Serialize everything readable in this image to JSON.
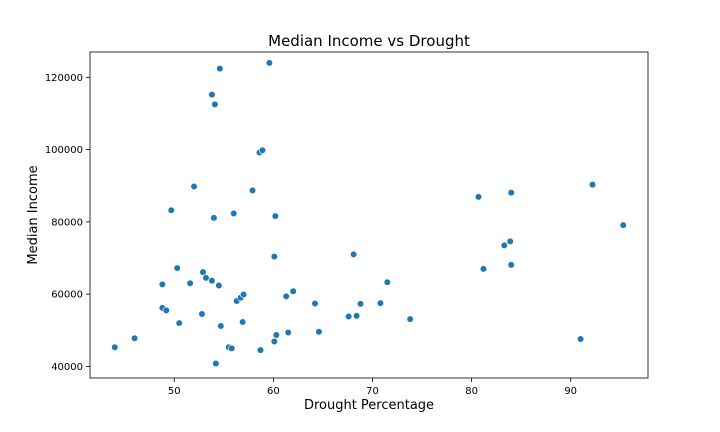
{
  "chart_data": {
    "type": "scatter",
    "title": "Median Income vs Drought",
    "xlabel": "Drought Percentage",
    "ylabel": "Median Income",
    "xlim": [
      41.5,
      97.8
    ],
    "ylim": [
      36800,
      127000
    ],
    "xticks": [
      50,
      60,
      70,
      80,
      90
    ],
    "yticks": [
      40000,
      60000,
      80000,
      100000,
      120000
    ],
    "grid": false,
    "legend": "none",
    "marker_color": "#1f77b4",
    "points": [
      [
        44.0,
        45300
      ],
      [
        46.0,
        47800
      ],
      [
        48.8,
        62700
      ],
      [
        48.8,
        56200
      ],
      [
        49.2,
        55500
      ],
      [
        49.7,
        83200
      ],
      [
        50.3,
        67200
      ],
      [
        50.5,
        52000
      ],
      [
        51.6,
        63000
      ],
      [
        52.0,
        89800
      ],
      [
        52.8,
        54500
      ],
      [
        52.9,
        66100
      ],
      [
        53.2,
        64500
      ],
      [
        53.8,
        63700
      ],
      [
        53.8,
        115200
      ],
      [
        54.0,
        81100
      ],
      [
        54.1,
        112500
      ],
      [
        54.2,
        40800
      ],
      [
        54.5,
        62400
      ],
      [
        54.6,
        122400
      ],
      [
        54.7,
        51200
      ],
      [
        55.5,
        45300
      ],
      [
        55.8,
        45000
      ],
      [
        56.0,
        82300
      ],
      [
        56.3,
        58100
      ],
      [
        56.7,
        59000
      ],
      [
        56.9,
        52300
      ],
      [
        57.0,
        59900
      ],
      [
        57.9,
        88700
      ],
      [
        58.6,
        99200
      ],
      [
        58.7,
        44500
      ],
      [
        58.9,
        99800
      ],
      [
        59.6,
        124000
      ],
      [
        60.1,
        70400
      ],
      [
        60.1,
        46900
      ],
      [
        60.2,
        81600
      ],
      [
        60.3,
        48700
      ],
      [
        61.3,
        59400
      ],
      [
        61.5,
        49400
      ],
      [
        62.0,
        60800
      ],
      [
        64.2,
        57400
      ],
      [
        64.6,
        49600
      ],
      [
        67.6,
        53800
      ],
      [
        68.1,
        71000
      ],
      [
        68.4,
        54000
      ],
      [
        68.8,
        57300
      ],
      [
        70.8,
        57500
      ],
      [
        71.5,
        63300
      ],
      [
        73.8,
        53100
      ],
      [
        80.7,
        86900
      ],
      [
        81.2,
        67000
      ],
      [
        83.3,
        73500
      ],
      [
        83.9,
        74600
      ],
      [
        84.0,
        88100
      ],
      [
        84.0,
        68100
      ],
      [
        91.0,
        47600
      ],
      [
        92.2,
        90300
      ],
      [
        95.3,
        79100
      ]
    ]
  }
}
